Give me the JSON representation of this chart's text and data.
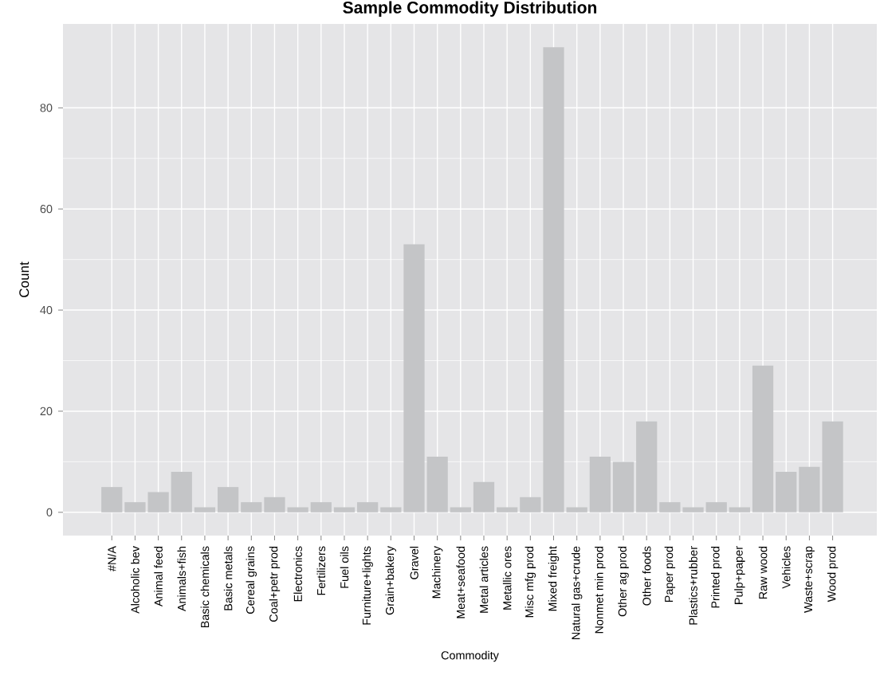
{
  "chart_data": {
    "type": "bar",
    "title": "Sample Commodity Distribution",
    "xlabel": "Commodity",
    "ylabel": "Count",
    "categories": [
      "#N/A",
      "Alcoholic bev",
      "Animal feed",
      "Animals+fish",
      "Basic chemicals",
      "Basic metals",
      "Cereal grains",
      "Coal+petr prod",
      "Electronics",
      "Fertilizers",
      "Fuel oils",
      "Furniture+lights",
      "Grain+bakery",
      "Gravel",
      "Machinery",
      "Meat+seafood",
      "Metal articles",
      "Metallic ores",
      "Misc mfg prod",
      "Mixed freight",
      "Natural gas+crude",
      "Nonmet min prod",
      "Other ag prod",
      "Other foods",
      "Paper prod",
      "Plastics+rubber",
      "Printed prod",
      "Pulp+paper",
      "Raw wood",
      "Vehicles",
      "Waste+scrap",
      "Wood prod"
    ],
    "values": [
      5,
      2,
      4,
      8,
      1,
      5,
      2,
      3,
      1,
      2,
      1,
      2,
      1,
      53,
      11,
      1,
      6,
      1,
      3,
      92,
      1,
      11,
      10,
      18,
      2,
      1,
      2,
      1,
      29,
      8,
      9,
      18
    ],
    "color": "#c4c5c7",
    "ylim": [
      -4.6,
      96.6
    ],
    "yticks": [
      0,
      20,
      40,
      60,
      80
    ],
    "grid": true
  }
}
